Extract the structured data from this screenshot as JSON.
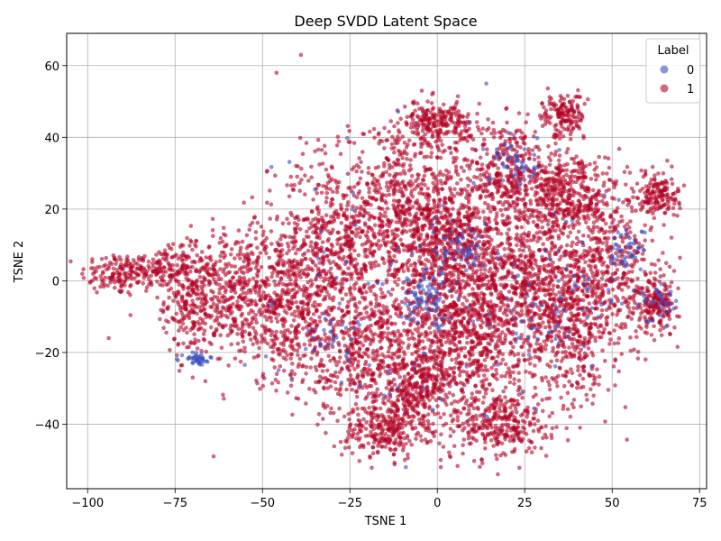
{
  "chart_data": {
    "type": "scatter",
    "title": "Deep SVDD Latent Space",
    "xlabel": "TSNE 1",
    "ylabel": "TSNE 2",
    "xlim": [
      -106,
      77
    ],
    "ylim": [
      -58,
      69
    ],
    "x_ticks": [
      -100,
      -75,
      -50,
      -25,
      0,
      25,
      50,
      75
    ],
    "y_ticks": [
      -40,
      -20,
      0,
      20,
      40,
      60
    ],
    "x_tick_labels": [
      "−100",
      "−75",
      "−50",
      "−25",
      "0",
      "25",
      "50",
      "75"
    ],
    "y_tick_labels": [
      "−40",
      "−20",
      "0",
      "20",
      "40",
      "60"
    ],
    "grid": true,
    "legend": {
      "title": "Label",
      "placement": "top-right",
      "entries": [
        {
          "label": "0",
          "color": "#3b4cc0"
        },
        {
          "label": "1",
          "color": "#b40426"
        }
      ]
    },
    "series": [
      {
        "name": "0",
        "color": "#3b4cc0",
        "clusters": [
          {
            "cx": -69,
            "cy": -22,
            "sx": 2,
            "sy": 1,
            "n": 40
          },
          {
            "cx": -3,
            "cy": -5,
            "sx": 4,
            "sy": 4,
            "n": 80
          },
          {
            "cx": 8,
            "cy": 8,
            "sx": 4,
            "sy": 3,
            "n": 50
          },
          {
            "cx": 22,
            "cy": 33,
            "sx": 4,
            "sy": 3,
            "n": 40
          },
          {
            "cx": 55,
            "cy": 8,
            "sx": 3,
            "sy": 3,
            "n": 40
          },
          {
            "cx": 63,
            "cy": -8,
            "sx": 3,
            "sy": 3,
            "n": 30
          },
          {
            "cx": 38,
            "cy": -5,
            "sx": 6,
            "sy": 8,
            "n": 40
          },
          {
            "cx": -30,
            "cy": -15,
            "sx": 4,
            "sy": 3,
            "n": 25
          },
          {
            "cx": 0,
            "cy": 0,
            "sx": 40,
            "sy": 25,
            "n": 120
          }
        ]
      },
      {
        "name": "1",
        "color": "#b40426",
        "clusters": [
          {
            "cx": -92,
            "cy": 2,
            "sx": 5,
            "sy": 3,
            "n": 120
          },
          {
            "cx": -80,
            "cy": 3,
            "sx": 5,
            "sy": 3,
            "n": 150
          },
          {
            "cx": -70,
            "cy": -5,
            "sx": 4,
            "sy": 8,
            "n": 260
          },
          {
            "cx": -58,
            "cy": -2,
            "sx": 6,
            "sy": 8,
            "n": 260
          },
          {
            "cx": -45,
            "cy": -8,
            "sx": 8,
            "sy": 10,
            "n": 450
          },
          {
            "cx": -30,
            "cy": 10,
            "sx": 8,
            "sy": 12,
            "n": 500
          },
          {
            "cx": -20,
            "cy": -20,
            "sx": 8,
            "sy": 10,
            "n": 450
          },
          {
            "cx": -15,
            "cy": -42,
            "sx": 6,
            "sy": 4,
            "n": 220
          },
          {
            "cx": -5,
            "cy": -30,
            "sx": 6,
            "sy": 6,
            "n": 300
          },
          {
            "cx": -10,
            "cy": 20,
            "sx": 8,
            "sy": 10,
            "n": 450
          },
          {
            "cx": 0,
            "cy": 44,
            "sx": 5,
            "sy": 3,
            "n": 220
          },
          {
            "cx": 5,
            "cy": 10,
            "sx": 8,
            "sy": 10,
            "n": 600
          },
          {
            "cx": 8,
            "cy": -15,
            "sx": 8,
            "sy": 10,
            "n": 600
          },
          {
            "cx": 18,
            "cy": -40,
            "sx": 7,
            "sy": 5,
            "n": 300
          },
          {
            "cx": 20,
            "cy": 30,
            "sx": 6,
            "sy": 8,
            "n": 350
          },
          {
            "cx": 25,
            "cy": 0,
            "sx": 8,
            "sy": 12,
            "n": 500
          },
          {
            "cx": 36,
            "cy": 46,
            "sx": 3,
            "sy": 3,
            "n": 150
          },
          {
            "cx": 38,
            "cy": 24,
            "sx": 6,
            "sy": 6,
            "n": 350
          },
          {
            "cx": 38,
            "cy": -10,
            "sx": 6,
            "sy": 12,
            "n": 450
          },
          {
            "cx": 50,
            "cy": 5,
            "sx": 6,
            "sy": 12,
            "n": 350
          },
          {
            "cx": 63,
            "cy": 24,
            "sx": 3,
            "sy": 3,
            "n": 150
          },
          {
            "cx": 63,
            "cy": -6,
            "sx": 3,
            "sy": 4,
            "n": 180
          },
          {
            "cx": 0,
            "cy": 0,
            "sx": 35,
            "sy": 22,
            "n": 900
          }
        ]
      }
    ],
    "outliers": [
      {
        "x": -46,
        "y": 58,
        "series": "1"
      },
      {
        "x": -39,
        "y": 63,
        "series": "1"
      },
      {
        "x": -64,
        "y": -49,
        "series": "1"
      },
      {
        "x": -94,
        "y": -16,
        "series": "1"
      },
      {
        "x": 1,
        "y": -52,
        "series": "1"
      },
      {
        "x": -9,
        "y": -52,
        "series": "0"
      },
      {
        "x": 14,
        "y": 55,
        "series": "0"
      }
    ]
  }
}
